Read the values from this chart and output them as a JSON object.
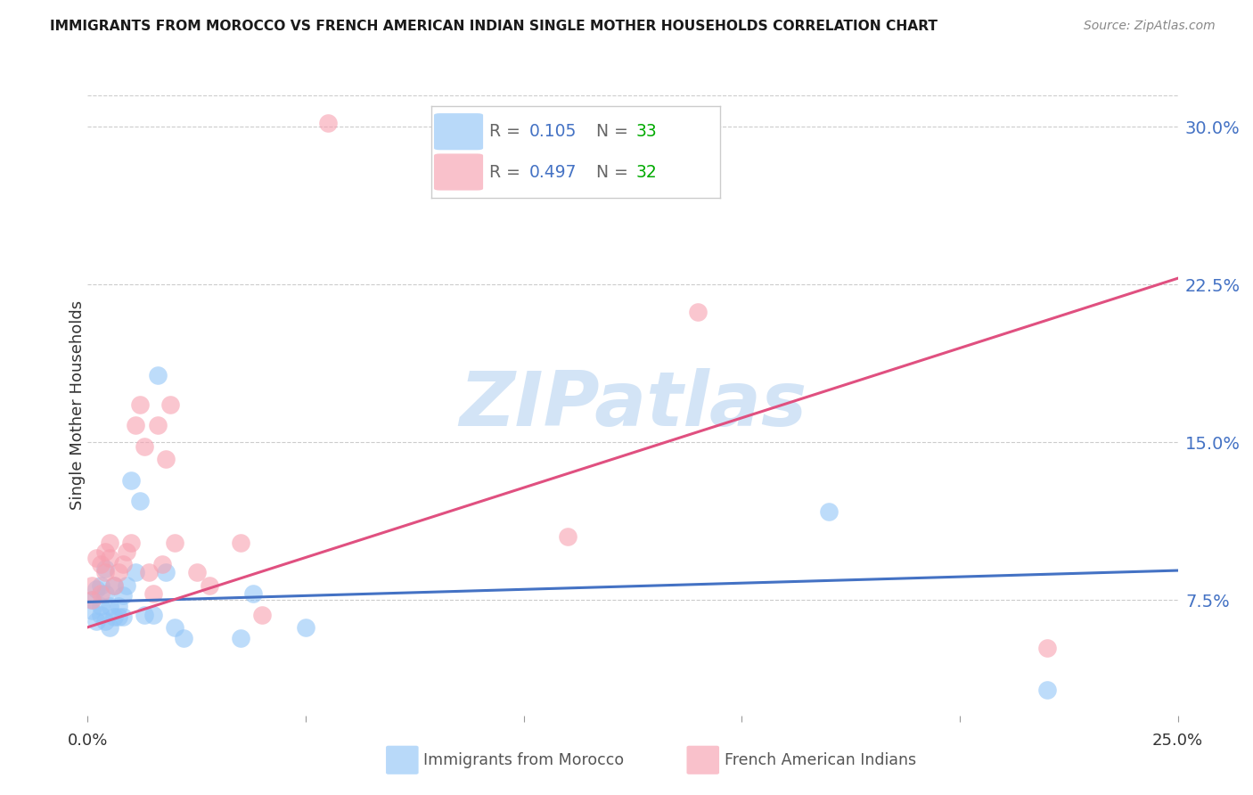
{
  "title": "IMMIGRANTS FROM MOROCCO VS FRENCH AMERICAN INDIAN SINGLE MOTHER HOUSEHOLDS CORRELATION CHART",
  "source": "Source: ZipAtlas.com",
  "ylabel": "Single Mother Households",
  "ytick_labels": [
    "7.5%",
    "15.0%",
    "22.5%",
    "30.0%"
  ],
  "ytick_values": [
    0.075,
    0.15,
    0.225,
    0.3
  ],
  "xlim": [
    0.0,
    0.25
  ],
  "ylim": [
    0.02,
    0.315
  ],
  "legend_blue_r": "0.105",
  "legend_blue_n": "33",
  "legend_pink_r": "0.497",
  "legend_pink_n": "32",
  "legend_blue_label": "Immigrants from Morocco",
  "legend_pink_label": "French American Indians",
  "blue_color": "#92c5f7",
  "pink_color": "#f7a0b0",
  "line_blue": "#4472c4",
  "line_pink": "#e05080",
  "title_color": "#1a1a1a",
  "axis_label_color": "#4472c4",
  "n_color": "#00aa00",
  "source_color": "#888888",
  "background_color": "#ffffff",
  "watermark": "ZIPatlas",
  "watermark_color": "#cce0f5",
  "blue_scatter_x": [
    0.001,
    0.001,
    0.002,
    0.002,
    0.003,
    0.003,
    0.003,
    0.004,
    0.004,
    0.004,
    0.005,
    0.005,
    0.006,
    0.006,
    0.007,
    0.007,
    0.008,
    0.008,
    0.009,
    0.01,
    0.011,
    0.012,
    0.013,
    0.015,
    0.016,
    0.018,
    0.02,
    0.022,
    0.035,
    0.038,
    0.05,
    0.17,
    0.22
  ],
  "blue_scatter_y": [
    0.075,
    0.07,
    0.08,
    0.065,
    0.082,
    0.072,
    0.068,
    0.09,
    0.078,
    0.065,
    0.062,
    0.072,
    0.067,
    0.082,
    0.072,
    0.067,
    0.077,
    0.067,
    0.082,
    0.132,
    0.088,
    0.122,
    0.068,
    0.068,
    0.182,
    0.088,
    0.062,
    0.057,
    0.057,
    0.078,
    0.062,
    0.117,
    0.032
  ],
  "pink_scatter_x": [
    0.001,
    0.001,
    0.002,
    0.003,
    0.003,
    0.004,
    0.004,
    0.005,
    0.005,
    0.006,
    0.007,
    0.008,
    0.009,
    0.01,
    0.011,
    0.012,
    0.013,
    0.014,
    0.015,
    0.016,
    0.017,
    0.018,
    0.019,
    0.02,
    0.025,
    0.028,
    0.035,
    0.04,
    0.055,
    0.11,
    0.14,
    0.22
  ],
  "pink_scatter_y": [
    0.082,
    0.075,
    0.095,
    0.092,
    0.078,
    0.098,
    0.088,
    0.102,
    0.095,
    0.082,
    0.088,
    0.092,
    0.098,
    0.102,
    0.158,
    0.168,
    0.148,
    0.088,
    0.078,
    0.158,
    0.092,
    0.142,
    0.168,
    0.102,
    0.088,
    0.082,
    0.102,
    0.068,
    0.302,
    0.105,
    0.212,
    0.052
  ],
  "blue_line_x": [
    0.0,
    0.25
  ],
  "blue_line_y": [
    0.074,
    0.089
  ],
  "pink_line_x": [
    0.0,
    0.25
  ],
  "pink_line_y": [
    0.062,
    0.228
  ]
}
